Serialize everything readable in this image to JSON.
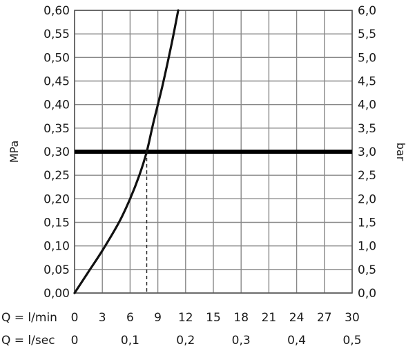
{
  "chart_data": {
    "type": "line",
    "title": "",
    "ylabel_left": "MPa",
    "ylabel_right": "bar",
    "xlabel_lpm": "Q = l/min",
    "xlabel_lps": "Q = l/sec",
    "xlim": [
      0,
      30
    ],
    "ylim": [
      0,
      0.6
    ],
    "y_ticks": [
      "0,00",
      "0,05",
      "0,10",
      "0,15",
      "0,20",
      "0,25",
      "0,30",
      "0,35",
      "0,40",
      "0,45",
      "0,50",
      "0,55",
      "0,60"
    ],
    "y_ticks_bar": [
      "0,0",
      "0,5",
      "1,0",
      "1,5",
      "2,0",
      "2,5",
      "3,0",
      "3,5",
      "4,0",
      "4,5",
      "5,0",
      "5,5",
      "6,0"
    ],
    "x_ticks_lpm": [
      "0",
      "3",
      "6",
      "9",
      "12",
      "15",
      "18",
      "21",
      "24",
      "27",
      "30"
    ],
    "x_ticks_lps": [
      "0",
      "0,1",
      "0,2",
      "0,3",
      "0,4",
      "0,5"
    ],
    "x_ticks_lps_values": [
      0,
      6,
      12,
      18,
      24,
      30
    ],
    "grid": true,
    "series": [
      {
        "x": [
          0,
          1.5,
          3,
          4.8,
          6,
          7,
          7.8,
          8.5,
          9.5,
          10.5,
          11.2
        ],
        "y": [
          0,
          0.045,
          0.09,
          0.15,
          0.2,
          0.25,
          0.3,
          0.36,
          0.44,
          0.53,
          0.6
        ]
      }
    ],
    "reference_line_y": 0.3,
    "reference_drop_x": 7.8,
    "colors": {
      "line": "#111111",
      "grid": "#888888",
      "reference": "#000000"
    }
  }
}
